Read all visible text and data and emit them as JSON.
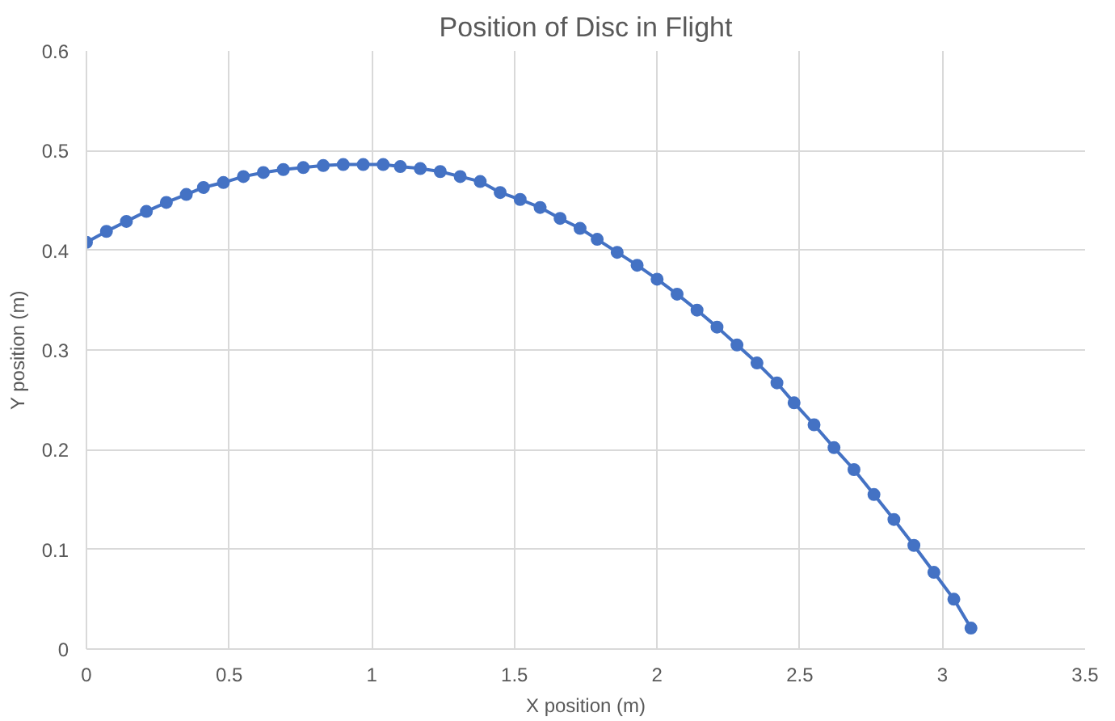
{
  "chart_data": {
    "type": "line",
    "title": "Position of Disc in Flight",
    "xlabel": "X position (m)",
    "ylabel": "Y position (m)",
    "x": [
      0,
      0.07,
      0.14,
      0.21,
      0.28,
      0.35,
      0.41,
      0.48,
      0.55,
      0.62,
      0.69,
      0.76,
      0.83,
      0.9,
      0.97,
      1.04,
      1.1,
      1.17,
      1.24,
      1.31,
      1.38,
      1.45,
      1.52,
      1.59,
      1.66,
      1.73,
      1.79,
      1.86,
      1.93,
      2.0,
      2.07,
      2.14,
      2.21,
      2.28,
      2.35,
      2.42,
      2.48,
      2.55,
      2.62,
      2.69,
      2.76,
      2.83,
      2.9,
      2.97,
      3.04,
      3.1
    ],
    "series": [
      {
        "color": "#4472c4",
        "values": [
          0.408,
          0.419,
          0.429,
          0.439,
          0.448,
          0.456,
          0.463,
          0.468,
          0.474,
          0.478,
          0.481,
          0.483,
          0.485,
          0.486,
          0.486,
          0.486,
          0.484,
          0.482,
          0.479,
          0.474,
          0.469,
          0.458,
          0.451,
          0.443,
          0.432,
          0.422,
          0.411,
          0.398,
          0.385,
          0.371,
          0.356,
          0.34,
          0.323,
          0.305,
          0.287,
          0.267,
          0.247,
          0.225,
          0.202,
          0.18,
          0.155,
          0.13,
          0.104,
          0.077,
          0.05,
          0.021
        ]
      }
    ],
    "xlim": [
      0,
      3.5
    ],
    "ylim": [
      0,
      0.6
    ],
    "xticks": [
      0,
      0.5,
      1,
      1.5,
      2,
      2.5,
      3,
      3.5
    ],
    "yticks": [
      0,
      0.1,
      0.2,
      0.3,
      0.4,
      0.5,
      0.6
    ],
    "grid": true,
    "marker": "circle",
    "line_style": "solid"
  }
}
